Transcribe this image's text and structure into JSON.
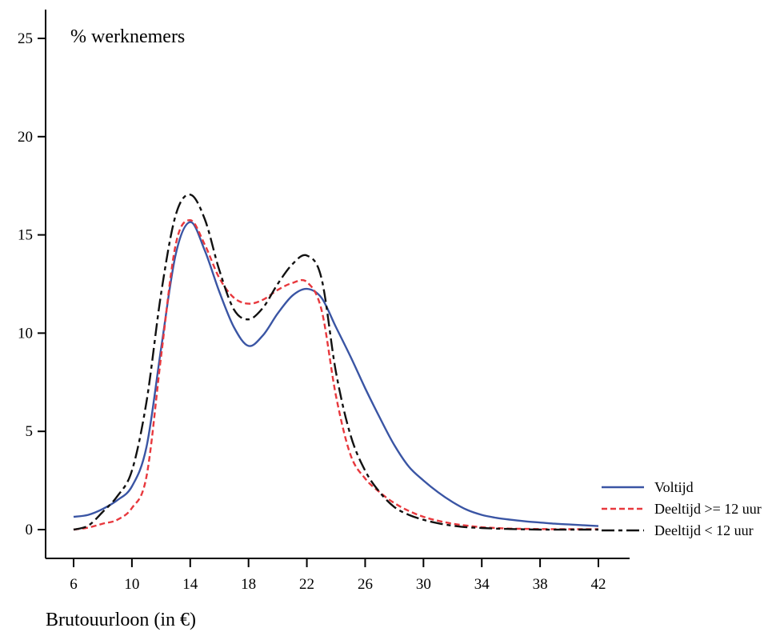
{
  "chart_data": {
    "type": "line",
    "ylabel": "% werknemers",
    "xlabel": "Brutouurloon (in €)",
    "xlim": [
      6,
      42
    ],
    "ylim": [
      0,
      25
    ],
    "xticks": [
      6,
      10,
      14,
      18,
      22,
      26,
      30,
      34,
      38,
      42
    ],
    "yticks": [
      0,
      5,
      10,
      15,
      20,
      25
    ],
    "x_tick_labels": [
      "6",
      "10",
      "14",
      "18",
      "22",
      "26",
      "30",
      "34",
      "38",
      "42"
    ],
    "y_tick_labels": [
      "0",
      "5",
      "10",
      "15",
      "20",
      "25"
    ],
    "grid": false,
    "legend_position": "right",
    "series": [
      {
        "name": "Voltijd",
        "color": "#3a55a4",
        "dash": "solid",
        "points": [
          [
            6,
            0.65
          ],
          [
            7,
            0.75
          ],
          [
            8,
            1.05
          ],
          [
            9,
            1.5
          ],
          [
            10,
            2.2
          ],
          [
            11,
            4.2
          ],
          [
            12,
            9.2
          ],
          [
            13,
            14.0
          ],
          [
            14,
            15.65
          ],
          [
            15,
            14.2
          ],
          [
            16,
            12.1
          ],
          [
            17,
            10.3
          ],
          [
            18,
            9.35
          ],
          [
            19,
            9.9
          ],
          [
            20,
            11.0
          ],
          [
            21,
            11.9
          ],
          [
            22,
            12.25
          ],
          [
            23,
            11.8
          ],
          [
            24,
            10.3
          ],
          [
            25,
            8.8
          ],
          [
            26,
            7.2
          ],
          [
            27,
            5.7
          ],
          [
            28,
            4.3
          ],
          [
            29,
            3.2
          ],
          [
            30,
            2.5
          ],
          [
            31,
            1.9
          ],
          [
            32,
            1.4
          ],
          [
            33,
            1.0
          ],
          [
            34,
            0.75
          ],
          [
            35,
            0.6
          ],
          [
            36,
            0.5
          ],
          [
            37,
            0.42
          ],
          [
            38,
            0.36
          ],
          [
            39,
            0.3
          ],
          [
            40,
            0.26
          ],
          [
            41,
            0.22
          ],
          [
            42,
            0.18
          ]
        ]
      },
      {
        "name": "Deeltijd >= 12 uur",
        "color": "#e8383d",
        "dash": "dashed",
        "points": [
          [
            6,
            0.0
          ],
          [
            7,
            0.1
          ],
          [
            8,
            0.3
          ],
          [
            9,
            0.5
          ],
          [
            10,
            1.1
          ],
          [
            11,
            2.7
          ],
          [
            12,
            8.8
          ],
          [
            13,
            14.5
          ],
          [
            14,
            15.75
          ],
          [
            15,
            14.5
          ],
          [
            16,
            12.8
          ],
          [
            17,
            11.8
          ],
          [
            18,
            11.5
          ],
          [
            19,
            11.7
          ],
          [
            20,
            12.2
          ],
          [
            21,
            12.55
          ],
          [
            22,
            12.6
          ],
          [
            23,
            11.2
          ],
          [
            24,
            6.8
          ],
          [
            25,
            3.8
          ],
          [
            26,
            2.6
          ],
          [
            27,
            1.9
          ],
          [
            28,
            1.35
          ],
          [
            29,
            0.95
          ],
          [
            30,
            0.65
          ],
          [
            31,
            0.45
          ],
          [
            32,
            0.3
          ],
          [
            33,
            0.2
          ],
          [
            34,
            0.12
          ],
          [
            35,
            0.08
          ],
          [
            36,
            0.05
          ],
          [
            38,
            0.03
          ],
          [
            40,
            0.02
          ],
          [
            42,
            0.02
          ]
        ]
      },
      {
        "name": "Deeltijd < 12 uur",
        "color": "#111111",
        "dash": "longdash",
        "points": [
          [
            6,
            0.0
          ],
          [
            7,
            0.2
          ],
          [
            8,
            0.9
          ],
          [
            9,
            1.7
          ],
          [
            10,
            3.0
          ],
          [
            11,
            6.5
          ],
          [
            12,
            12.0
          ],
          [
            13,
            16.0
          ],
          [
            14,
            17.05
          ],
          [
            15,
            15.8
          ],
          [
            16,
            13.2
          ],
          [
            17,
            11.2
          ],
          [
            18,
            10.7
          ],
          [
            19,
            11.3
          ],
          [
            20,
            12.5
          ],
          [
            21,
            13.5
          ],
          [
            22,
            13.95
          ],
          [
            23,
            12.8
          ],
          [
            24,
            8.0
          ],
          [
            25,
            4.8
          ],
          [
            26,
            3.0
          ],
          [
            27,
            1.9
          ],
          [
            28,
            1.15
          ],
          [
            29,
            0.75
          ],
          [
            30,
            0.5
          ],
          [
            31,
            0.32
          ],
          [
            32,
            0.2
          ],
          [
            33,
            0.12
          ],
          [
            34,
            0.08
          ],
          [
            35,
            0.05
          ],
          [
            36,
            0.03
          ],
          [
            38,
            0.0
          ],
          [
            40,
            0.0
          ],
          [
            42,
            0.0
          ]
        ]
      }
    ]
  }
}
